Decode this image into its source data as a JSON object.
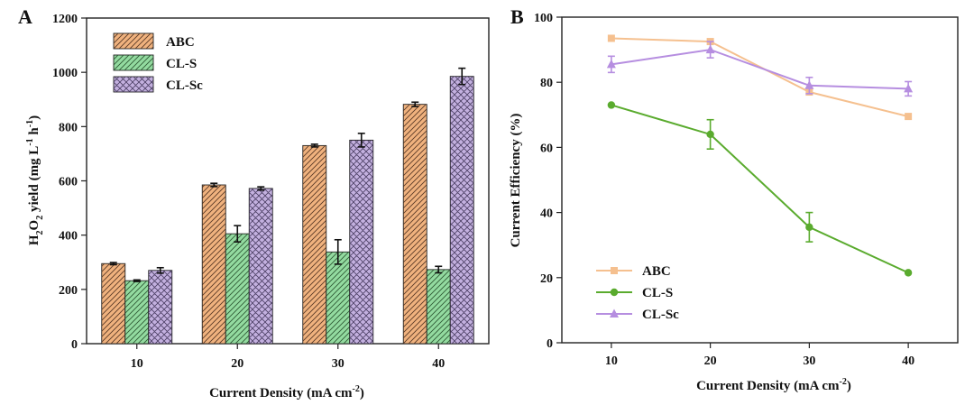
{
  "chart_data": [
    {
      "panel": "A",
      "type": "bar",
      "title": "",
      "xlabel": "Current Density (mA cm",
      "xlabel_sup": "-2",
      "xlabel_close": ")",
      "ylabel_parts": [
        "H",
        "2",
        "O",
        "2",
        " yield (mg L",
        "-1",
        " h",
        "-1",
        ")"
      ],
      "ylim": [
        0,
        1200
      ],
      "yticks": [
        0,
        200,
        400,
        600,
        800,
        1000,
        1200
      ],
      "categories": [
        "10",
        "20",
        "30",
        "40"
      ],
      "legend_position": "top-left",
      "series": [
        {
          "name": "ABC",
          "values": [
            295,
            585,
            730,
            882
          ],
          "errors": [
            4,
            6,
            5,
            8
          ],
          "color": "#f0b27e",
          "pattern": "hatch"
        },
        {
          "name": "CL-S",
          "values": [
            232,
            405,
            338,
            273
          ],
          "errors": [
            3,
            30,
            45,
            12
          ],
          "color": "#93dba0",
          "pattern": "hatch"
        },
        {
          "name": "CL-Sc",
          "values": [
            270,
            572,
            750,
            985
          ],
          "errors": [
            10,
            6,
            25,
            30
          ],
          "color": "#c3b0df",
          "pattern": "crosshatch"
        }
      ]
    },
    {
      "panel": "B",
      "type": "line",
      "title": "",
      "xlabel": "Current Density (mA cm",
      "xlabel_sup": "-2",
      "xlabel_close": ")",
      "ylabel": "Current Efficiency (%)",
      "ylim": [
        0,
        100
      ],
      "yticks": [
        0,
        20,
        40,
        60,
        80,
        100
      ],
      "xlim": [
        5,
        45
      ],
      "x": [
        10,
        20,
        30,
        40
      ],
      "legend_position": "bottom-left",
      "series": [
        {
          "name": "ABC",
          "values": [
            93.5,
            92.5,
            77,
            69.5
          ],
          "errors": [
            0,
            0,
            0,
            0
          ],
          "color": "#f5c08f",
          "marker": "square"
        },
        {
          "name": "CL-S",
          "values": [
            73,
            64,
            35.5,
            21.5
          ],
          "errors": [
            0,
            4.5,
            4.5,
            0
          ],
          "color": "#5aab2e",
          "marker": "circle"
        },
        {
          "name": "CL-Sc",
          "values": [
            85.5,
            90,
            79,
            78
          ],
          "errors": [
            2.5,
            2.5,
            2.5,
            2.2
          ],
          "color": "#b68ee0",
          "marker": "triangle"
        }
      ]
    }
  ]
}
